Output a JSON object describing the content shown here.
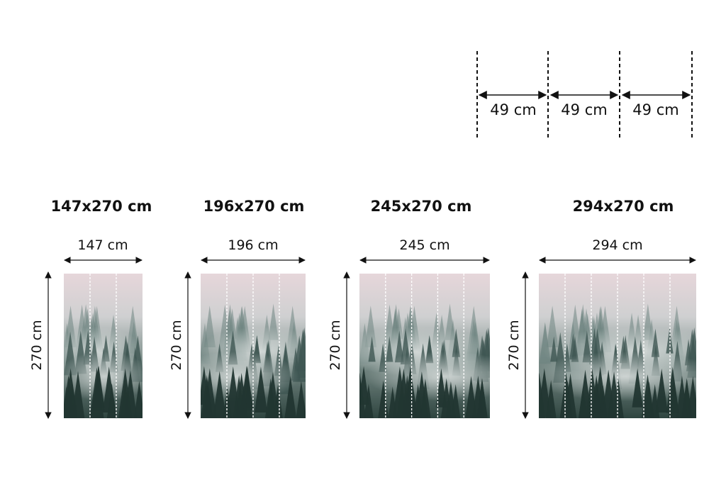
{
  "strip": {
    "label": "49 cm",
    "count": 3
  },
  "sizes": [
    {
      "title": "147x270 cm",
      "width_label": "147 cm",
      "height_label": "270 cm",
      "strips": 3
    },
    {
      "title": "196x270 cm",
      "width_label": "196 cm",
      "height_label": "270 cm",
      "strips": 4
    },
    {
      "title": "245x270 cm",
      "width_label": "245 cm",
      "height_label": "270 cm",
      "strips": 5
    },
    {
      "title": "294x270 cm",
      "width_label": "294 cm",
      "height_label": "270 cm",
      "strips": 6
    }
  ],
  "colors": {
    "sky": "#e6d6da",
    "fog": "#b9c4c2",
    "forest": "#2f4540",
    "forest_dark": "#223631",
    "line": "#111111"
  }
}
